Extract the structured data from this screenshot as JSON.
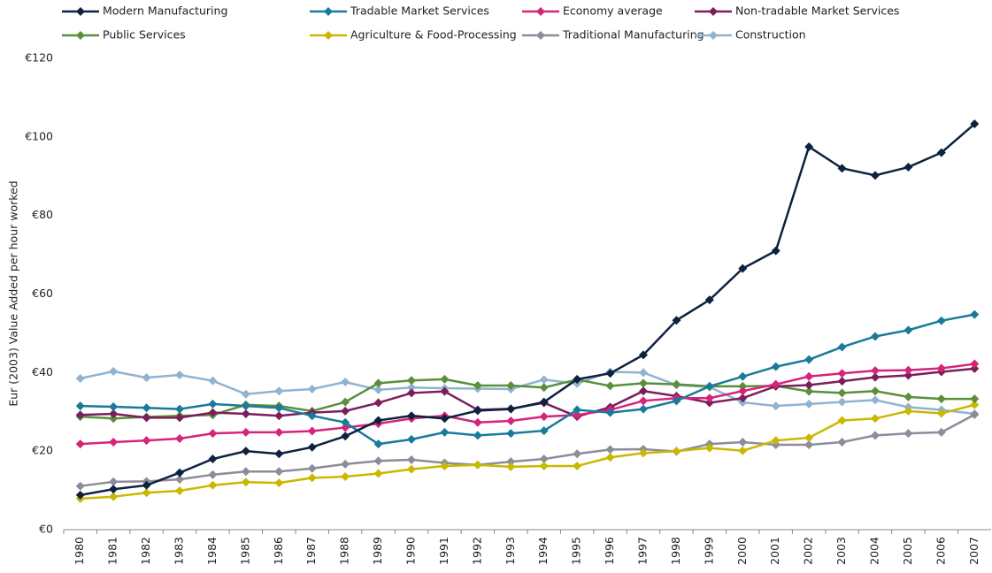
{
  "chart_data": {
    "type": "line",
    "y_label": "Eur (2003) Value Added per hour worked",
    "categories": [
      "1980",
      "1981",
      "1982",
      "1983",
      "1984",
      "1985",
      "1986",
      "1987",
      "1988",
      "1989",
      "1990",
      "1991",
      "1992",
      "1993",
      "1994",
      "1995",
      "1996",
      "1997",
      "1998",
      "1999",
      "2000",
      "2001",
      "2002",
      "2003",
      "2004",
      "2005",
      "2006",
      "2007"
    ],
    "ylim": [
      0,
      120
    ],
    "yticks": [
      {
        "value": 0,
        "label": "€0"
      },
      {
        "value": 20,
        "label": "€20"
      },
      {
        "value": 40,
        "label": "€40"
      },
      {
        "value": 60,
        "label": "€60"
      },
      {
        "value": 80,
        "label": "€80"
      },
      {
        "value": 100,
        "label": "€100"
      },
      {
        "value": 120,
        "label": "€120"
      }
    ],
    "grid": false,
    "legend": "top",
    "series": [
      {
        "name": "Modern Manufacturing",
        "color": "#0d2240",
        "values": [
          8.8,
          10.3,
          11.3,
          14.5,
          18,
          20,
          19.3,
          21,
          23.8,
          27.8,
          29,
          28.3,
          30.3,
          30.7,
          32.5,
          38.3,
          39.8,
          44.5,
          53.3,
          58.5,
          66.5,
          71,
          97.5,
          92,
          90.2,
          92.3,
          96,
          103.3
        ]
      },
      {
        "name": "Tradable Market Services",
        "color": "#1a7a9a",
        "values": [
          31.5,
          31.3,
          31,
          30.7,
          32,
          31.5,
          31,
          29,
          27.3,
          21.8,
          23,
          24.8,
          24,
          24.5,
          25.2,
          30.5,
          29.8,
          30.7,
          32.8,
          36.5,
          39,
          41.5,
          43.3,
          46.5,
          49.2,
          50.8,
          53.2,
          54.8
        ]
      },
      {
        "name": "Economy average",
        "color": "#d6247a",
        "values": [
          21.8,
          22.3,
          22.7,
          23.2,
          24.5,
          24.8,
          24.8,
          25.1,
          26,
          27,
          28.3,
          29,
          27.3,
          27.7,
          28.8,
          29.2,
          30.5,
          32.8,
          33.5,
          33.5,
          35.3,
          37,
          39,
          39.8,
          40.5,
          40.6,
          41.1,
          42.2
        ]
      },
      {
        "name": "Non-tradable  Market Services",
        "color": "#7b1f5a",
        "values": [
          29.2,
          29.5,
          28.5,
          28.5,
          29.8,
          29.5,
          29,
          29.8,
          30.2,
          32.3,
          34.8,
          35.2,
          30.5,
          30.8,
          32.3,
          28.8,
          31.2,
          35.3,
          34,
          32.3,
          33.5,
          36.5,
          36.8,
          37.8,
          38.8,
          39.3,
          40.2,
          41
        ]
      },
      {
        "name": "Public Services",
        "color": "#5a8f3c",
        "values": [
          28.8,
          28.3,
          28.7,
          29,
          29.2,
          31.8,
          31.5,
          30.2,
          32.5,
          37.3,
          38,
          38.3,
          36.7,
          36.7,
          36.2,
          38.2,
          36.6,
          37.3,
          37,
          36.5,
          36.5,
          36.6,
          35.2,
          34.8,
          35.3,
          33.8,
          33.3,
          33.3
        ]
      },
      {
        "name": "Agriculture  & Food-Processing",
        "color": "#c9b800",
        "values": [
          7.9,
          8.4,
          9.4,
          9.9,
          11.3,
          12.1,
          11.9,
          13.2,
          13.5,
          14.3,
          15.4,
          16.2,
          16.5,
          16,
          16.2,
          16.2,
          18.4,
          19.5,
          20,
          20.8,
          20.1,
          22.7,
          23.4,
          27.8,
          28.3,
          30.2,
          29.6,
          31.8
        ]
      },
      {
        "name": "Traditional Manufacturing",
        "color": "#8c8c9a",
        "values": [
          11.1,
          12.2,
          12.3,
          12.8,
          14,
          14.8,
          14.8,
          15.6,
          16.7,
          17.5,
          17.8,
          17,
          16.5,
          17.3,
          18,
          19.3,
          20.4,
          20.5,
          19.9,
          21.8,
          22.3,
          21.6,
          21.6,
          22.3,
          24,
          24.5,
          24.8,
          29.3
        ]
      },
      {
        "name": "Construction",
        "color": "#8fb3d1",
        "values": [
          38.5,
          40.3,
          38.7,
          39.4,
          37.9,
          34.5,
          35.3,
          35.8,
          37.6,
          35.6,
          36.2,
          36,
          35.9,
          35.8,
          38.2,
          37.2,
          40.2,
          40,
          36.8,
          36.3,
          32.4,
          31.5,
          32,
          32.5,
          33,
          31.2,
          30.5,
          29.5
        ]
      }
    ]
  }
}
